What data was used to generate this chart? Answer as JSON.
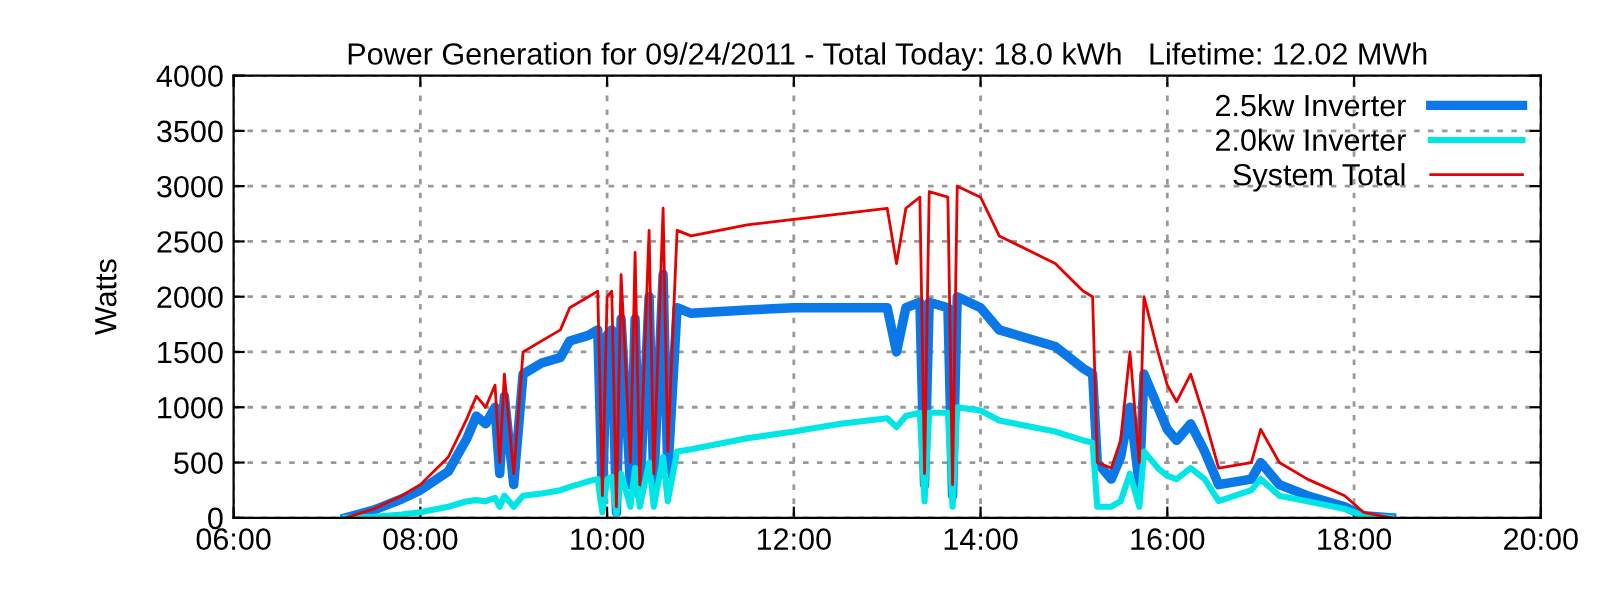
{
  "chart_data": {
    "type": "line",
    "title": "Power Generation for 09/24/2011 - Total Today: 18.0 kWh   Lifetime: 12.02 MWh",
    "ylabel": "Watts",
    "x": [
      7.2,
      7.5,
      7.8,
      8.0,
      8.3,
      8.5,
      8.6,
      8.7,
      8.8,
      8.85,
      8.9,
      9.0,
      9.1,
      9.3,
      9.5,
      9.6,
      9.8,
      9.9,
      9.95,
      10.0,
      10.05,
      10.1,
      10.15,
      10.25,
      10.3,
      10.35,
      10.45,
      10.5,
      10.6,
      10.65,
      10.75,
      10.9,
      11.5,
      12.0,
      12.5,
      13.0,
      13.1,
      13.2,
      13.35,
      13.4,
      13.45,
      13.65,
      13.7,
      13.75,
      14.0,
      14.2,
      14.8,
      15.1,
      15.2,
      15.25,
      15.4,
      15.5,
      15.6,
      15.7,
      15.75,
      15.9,
      16.0,
      16.1,
      16.25,
      16.4,
      16.55,
      16.9,
      17.0,
      17.2,
      17.5,
      17.9,
      18.1,
      18.4
    ],
    "series": [
      {
        "name": "2.5kw Inverter",
        "color": "#0a78e6",
        "values": [
          0,
          70,
          170,
          250,
          420,
          720,
          920,
          850,
          1000,
          400,
          1100,
          300,
          1300,
          1400,
          1450,
          1600,
          1650,
          1700,
          150,
          1650,
          1700,
          50,
          1800,
          300,
          1800,
          200,
          2000,
          300,
          2200,
          400,
          1900,
          1850,
          1880,
          1900,
          1900,
          1900,
          1500,
          1900,
          1950,
          300,
          1950,
          1900,
          200,
          2000,
          1900,
          1700,
          1550,
          1350,
          1300,
          500,
          350,
          550,
          1000,
          300,
          1300,
          1000,
          800,
          700,
          850,
          600,
          300,
          350,
          500,
          300,
          200,
          100,
          20,
          0
        ]
      },
      {
        "name": "2.0kw Inverter",
        "color": "#00e6e6",
        "values": [
          0,
          10,
          30,
          50,
          100,
          150,
          160,
          150,
          180,
          100,
          200,
          100,
          200,
          220,
          250,
          280,
          330,
          350,
          50,
          350,
          370,
          30,
          400,
          100,
          450,
          100,
          500,
          100,
          550,
          150,
          600,
          620,
          720,
          780,
          850,
          900,
          820,
          920,
          950,
          150,
          950,
          950,
          100,
          1000,
          970,
          880,
          780,
          700,
          680,
          100,
          100,
          150,
          400,
          100,
          600,
          450,
          380,
          350,
          450,
          350,
          150,
          250,
          350,
          200,
          150,
          80,
          20,
          0
        ]
      },
      {
        "name": "System Total",
        "color": "#e60000",
        "values": [
          0,
          80,
          200,
          300,
          550,
          900,
          1100,
          1000,
          1200,
          500,
          1300,
          400,
          1500,
          1600,
          1700,
          1900,
          2000,
          2050,
          200,
          2000,
          2050,
          100,
          2200,
          500,
          2400,
          300,
          2600,
          400,
          2800,
          600,
          2600,
          2550,
          2650,
          2700,
          2750,
          2800,
          2300,
          2800,
          2900,
          400,
          2950,
          2900,
          300,
          3000,
          2900,
          2550,
          2300,
          2050,
          2000,
          500,
          450,
          700,
          1500,
          500,
          2000,
          1500,
          1200,
          1050,
          1300,
          900,
          450,
          500,
          800,
          500,
          350,
          200,
          50,
          0
        ]
      }
    ],
    "xlim": [
      6,
      20
    ],
    "xticks": [
      {
        "value": 6,
        "label": "06:00"
      },
      {
        "value": 8,
        "label": "08:00"
      },
      {
        "value": 10,
        "label": "10:00"
      },
      {
        "value": 12,
        "label": "12:00"
      },
      {
        "value": 14,
        "label": "14:00"
      },
      {
        "value": 16,
        "label": "16:00"
      },
      {
        "value": 18,
        "label": "18:00"
      },
      {
        "value": 20,
        "label": "20:00"
      }
    ],
    "ylim": [
      0,
      4000
    ],
    "yticks": [
      0,
      500,
      1000,
      1500,
      2000,
      2500,
      3000,
      3500,
      4000
    ],
    "grid": true,
    "legend": "top right",
    "line_style": "solid",
    "marker": "none"
  }
}
